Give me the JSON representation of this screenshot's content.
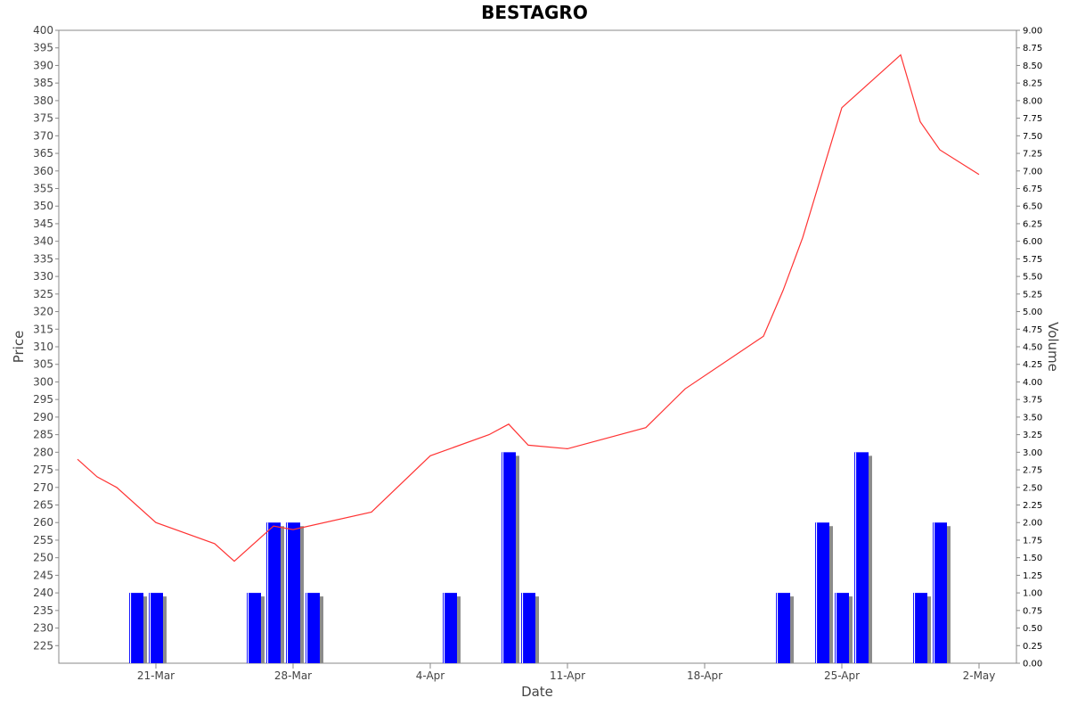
{
  "chart_data": {
    "type": "bar+line",
    "title": "BESTAGRO",
    "xlabel": "Date",
    "ylabel_left": "Price",
    "ylabel_right": "Volume",
    "x_ticks": [
      "21-Mar",
      "28-Mar",
      "4-Apr",
      "11-Apr",
      "18-Apr",
      "25-Apr",
      "2-May"
    ],
    "price_ylim": [
      220,
      400
    ],
    "price_ticks": [
      225,
      230,
      235,
      240,
      245,
      250,
      255,
      260,
      265,
      270,
      275,
      280,
      285,
      290,
      295,
      300,
      305,
      310,
      315,
      320,
      325,
      330,
      335,
      340,
      345,
      350,
      355,
      360,
      365,
      370,
      375,
      380,
      385,
      390,
      395,
      400
    ],
    "volume_ylim": [
      0,
      9
    ],
    "volume_ticks": [
      "0.00",
      "0.25",
      "0.50",
      "0.75",
      "1.00",
      "1.25",
      "1.50",
      "1.75",
      "2.00",
      "2.25",
      "2.50",
      "2.75",
      "3.00",
      "3.25",
      "3.50",
      "3.75",
      "4.00",
      "4.25",
      "4.50",
      "4.75",
      "5.00",
      "5.25",
      "5.50",
      "5.75",
      "6.00",
      "6.25",
      "6.50",
      "6.75",
      "7.00",
      "7.25",
      "7.50",
      "7.75",
      "8.00",
      "8.25",
      "8.50",
      "8.75",
      "9.00"
    ],
    "price_series": {
      "color": "#ff3333",
      "points": [
        {
          "date": "2024-03-17",
          "value": 278
        },
        {
          "date": "2024-03-18",
          "value": 273
        },
        {
          "date": "2024-03-19",
          "value": 270
        },
        {
          "date": "2024-03-21",
          "value": 260
        },
        {
          "date": "2024-03-24",
          "value": 254
        },
        {
          "date": "2024-03-25",
          "value": 249
        },
        {
          "date": "2024-03-27",
          "value": 259
        },
        {
          "date": "2024-03-28",
          "value": 258
        },
        {
          "date": "2024-04-01",
          "value": 263
        },
        {
          "date": "2024-04-04",
          "value": 279
        },
        {
          "date": "2024-04-07",
          "value": 285
        },
        {
          "date": "2024-04-08",
          "value": 288
        },
        {
          "date": "2024-04-09",
          "value": 282
        },
        {
          "date": "2024-04-11",
          "value": 281
        },
        {
          "date": "2024-04-15",
          "value": 287
        },
        {
          "date": "2024-04-17",
          "value": 298
        },
        {
          "date": "2024-04-21",
          "value": 313
        },
        {
          "date": "2024-04-22",
          "value": 326
        },
        {
          "date": "2024-04-23",
          "value": 341
        },
        {
          "date": "2024-04-25",
          "value": 378
        },
        {
          "date": "2024-04-28",
          "value": 393
        },
        {
          "date": "2024-04-29",
          "value": 374
        },
        {
          "date": "2024-04-30",
          "value": 366
        },
        {
          "date": "2024-05-02",
          "value": 359
        }
      ]
    },
    "volume_series": {
      "color": "#0000ff",
      "points": [
        {
          "date": "2024-03-20",
          "value": 1
        },
        {
          "date": "2024-03-21",
          "value": 1
        },
        {
          "date": "2024-03-26",
          "value": 1
        },
        {
          "date": "2024-03-27",
          "value": 2
        },
        {
          "date": "2024-03-28",
          "value": 2
        },
        {
          "date": "2024-03-29",
          "value": 1
        },
        {
          "date": "2024-04-05",
          "value": 1
        },
        {
          "date": "2024-04-08",
          "value": 3
        },
        {
          "date": "2024-04-09",
          "value": 1
        },
        {
          "date": "2024-04-22",
          "value": 1
        },
        {
          "date": "2024-04-24",
          "value": 2
        },
        {
          "date": "2024-04-25",
          "value": 1
        },
        {
          "date": "2024-04-26",
          "value": 3
        },
        {
          "date": "2024-04-29",
          "value": 1
        },
        {
          "date": "2024-04-30",
          "value": 2
        }
      ]
    }
  }
}
